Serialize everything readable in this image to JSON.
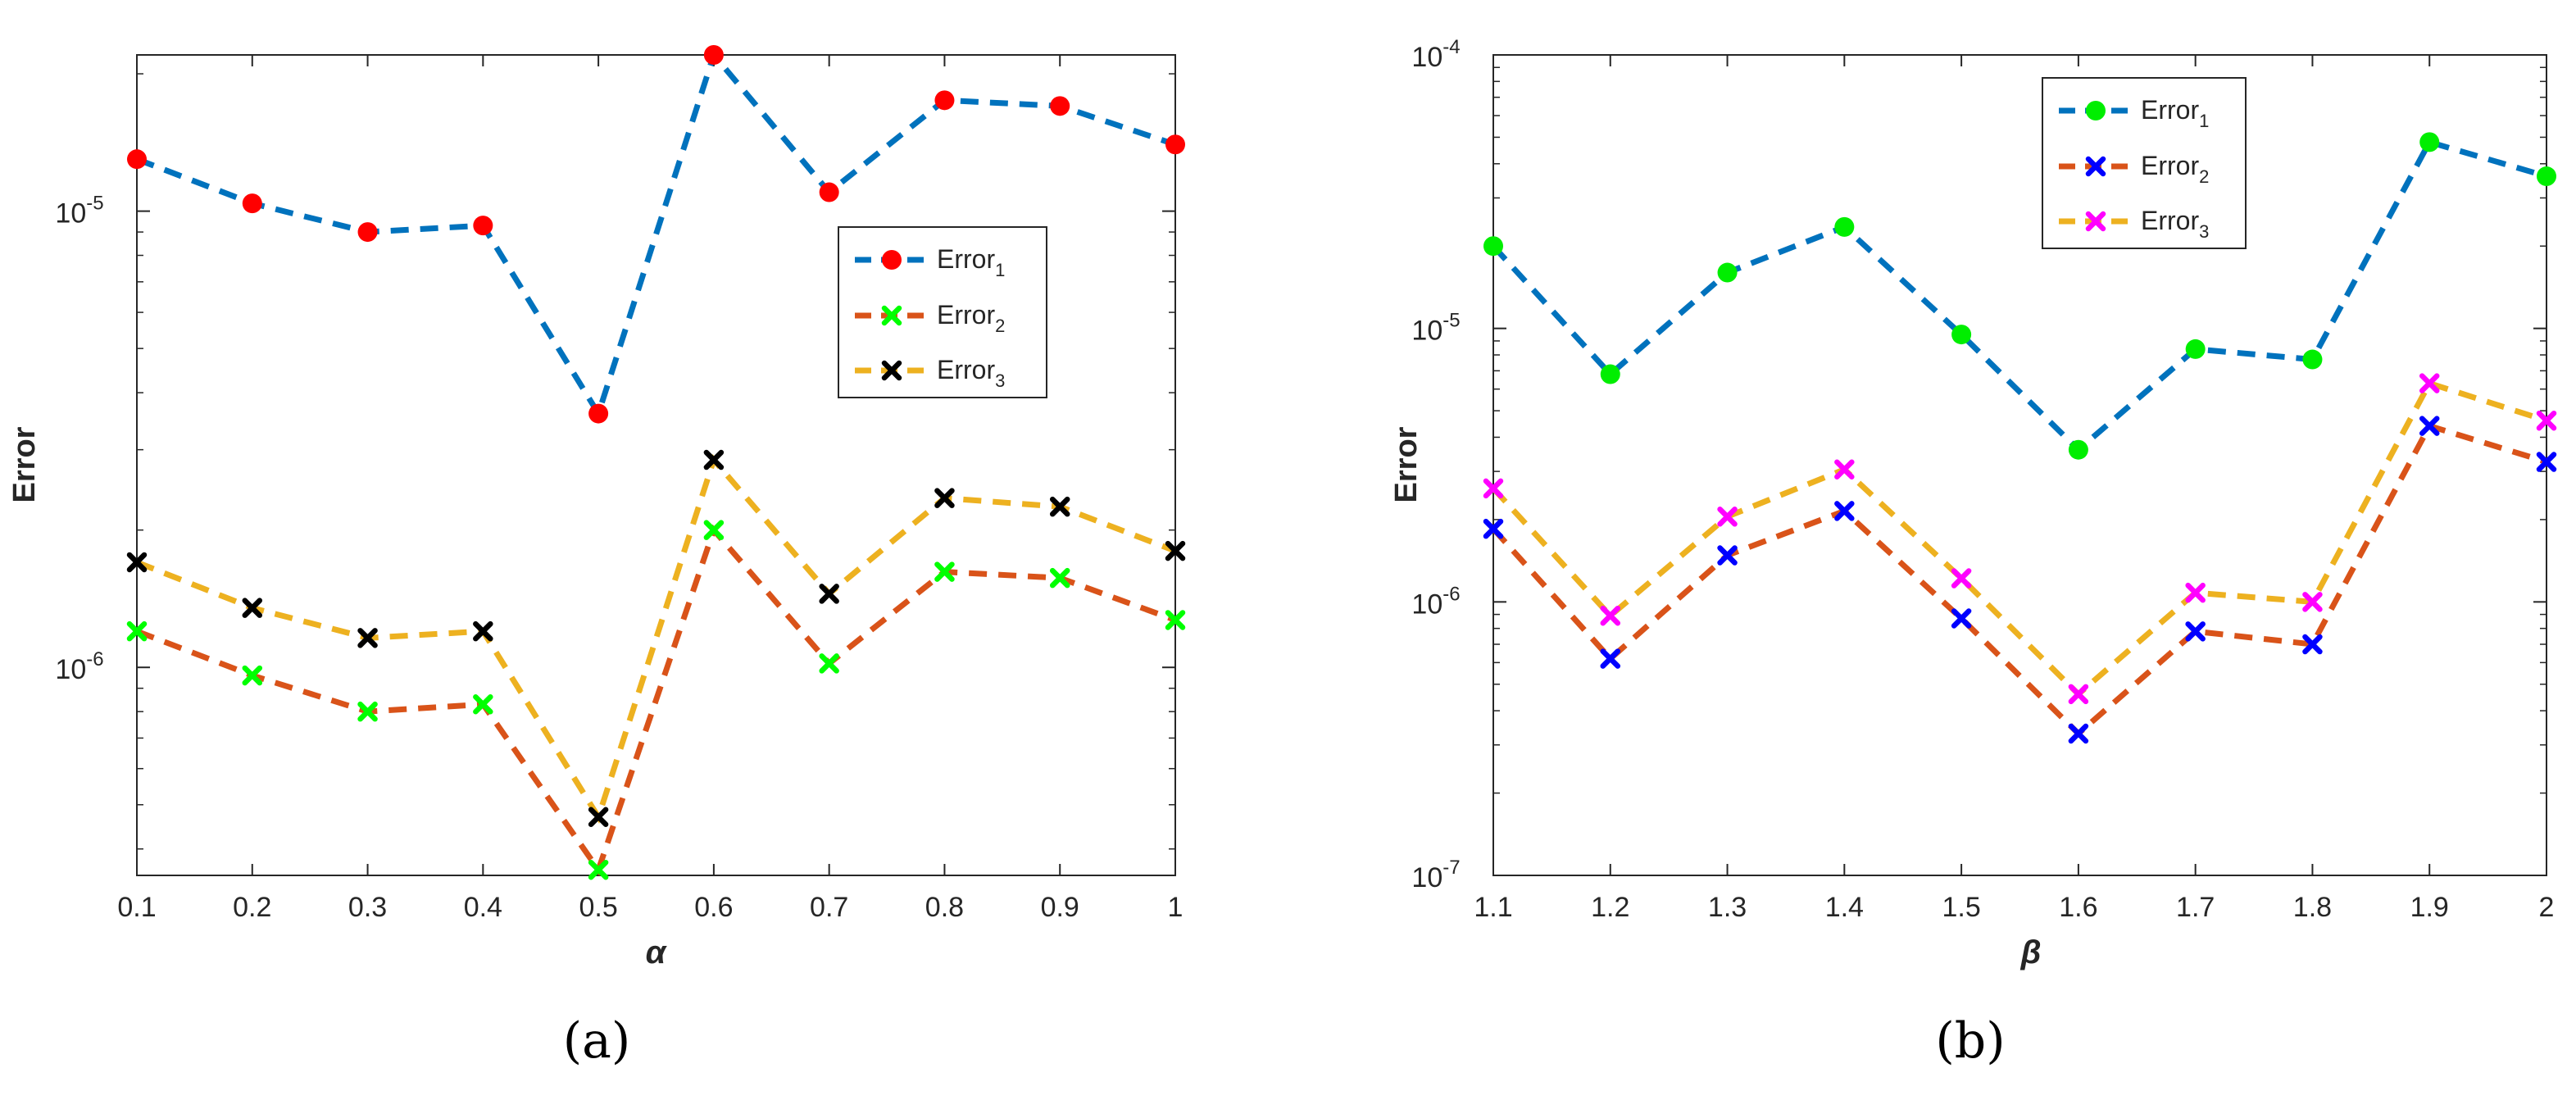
{
  "chart_data": [
    {
      "type": "line",
      "panel_label": "(a)",
      "xlabel": "α",
      "ylabel": "Error",
      "yscale": "log",
      "xlim": [
        0.1,
        1
      ],
      "ylim": [
        3.5e-07,
        2.2e-05
      ],
      "x_ticks": [
        "0.1",
        "0.2",
        "0.3",
        "0.4",
        "0.5",
        "0.6",
        "0.7",
        "0.8",
        "0.9",
        "1"
      ],
      "y_ticks": [
        {
          "value": 1e-06,
          "base": "10",
          "exp": "-6"
        },
        {
          "value": 1e-05,
          "base": "10",
          "exp": "-5"
        }
      ],
      "legend_position": "right-middle",
      "x": [
        0.1,
        0.2,
        0.3,
        0.4,
        0.5,
        0.6,
        0.7,
        0.8,
        0.9,
        1.0
      ],
      "series": [
        {
          "name": "Error",
          "sub": "1",
          "line_color": "#0072BD",
          "marker": "circle",
          "marker_color": "#FF0000",
          "values": [
            1.3e-05,
            1.04e-05,
            9e-06,
            9.3e-06,
            3.6e-06,
            2.2e-05,
            1.1e-05,
            1.75e-05,
            1.7e-05,
            1.4e-05
          ]
        },
        {
          "name": "Error",
          "sub": "2",
          "line_color": "#D95319",
          "marker": "x",
          "marker_color": "#00FF00",
          "values": [
            1.2e-06,
            9.6e-07,
            8e-07,
            8.3e-07,
            3.6e-07,
            2e-06,
            1.02e-06,
            1.62e-06,
            1.57e-06,
            1.27e-06
          ]
        },
        {
          "name": "Error",
          "sub": "3",
          "line_color": "#EDB120",
          "marker": "x",
          "marker_color": "#000000",
          "values": [
            1.7e-06,
            1.35e-06,
            1.16e-06,
            1.2e-06,
            4.7e-07,
            2.85e-06,
            1.45e-06,
            2.35e-06,
            2.25e-06,
            1.8e-06
          ]
        }
      ]
    },
    {
      "type": "line",
      "panel_label": "(b)",
      "xlabel": "β",
      "ylabel": "Error",
      "yscale": "log",
      "xlim": [
        1.1,
        2
      ],
      "ylim": [
        1e-07,
        0.0001
      ],
      "x_ticks": [
        "1.1",
        "1.2",
        "1.3",
        "1.4",
        "1.5",
        "1.6",
        "1.7",
        "1.8",
        "1.9",
        "2"
      ],
      "y_ticks": [
        {
          "value": 1e-07,
          "base": "10",
          "exp": "-7"
        },
        {
          "value": 1e-06,
          "base": "10",
          "exp": "-6"
        },
        {
          "value": 1e-05,
          "base": "10",
          "exp": "-5"
        },
        {
          "value": 0.0001,
          "base": "10",
          "exp": "-4"
        }
      ],
      "legend_position": "top-right",
      "x": [
        1.1,
        1.2,
        1.3,
        1.4,
        1.5,
        1.6,
        1.7,
        1.8,
        1.9,
        2.0
      ],
      "series": [
        {
          "name": "Error",
          "sub": "1",
          "line_color": "#0072BD",
          "marker": "circle",
          "marker_color": "#00EE00",
          "values": [
            2e-05,
            6.8e-06,
            1.6e-05,
            2.35e-05,
            9.5e-06,
            3.6e-06,
            8.4e-06,
            7.7e-06,
            4.8e-05,
            3.6e-05
          ]
        },
        {
          "name": "Error",
          "sub": "2",
          "line_color": "#D95319",
          "marker": "x",
          "marker_color": "#0000FF",
          "values": [
            1.85e-06,
            6.2e-07,
            1.48e-06,
            2.15e-06,
            8.7e-07,
            3.3e-07,
            7.8e-07,
            7e-07,
            4.4e-06,
            3.25e-06
          ]
        },
        {
          "name": "Error",
          "sub": "3",
          "line_color": "#EDB120",
          "marker": "x",
          "marker_color": "#FF00FF",
          "values": [
            2.6e-06,
            8.9e-07,
            2.05e-06,
            3.05e-06,
            1.22e-06,
            4.6e-07,
            1.08e-06,
            1e-06,
            6.3e-06,
            4.6e-06
          ]
        }
      ]
    }
  ]
}
